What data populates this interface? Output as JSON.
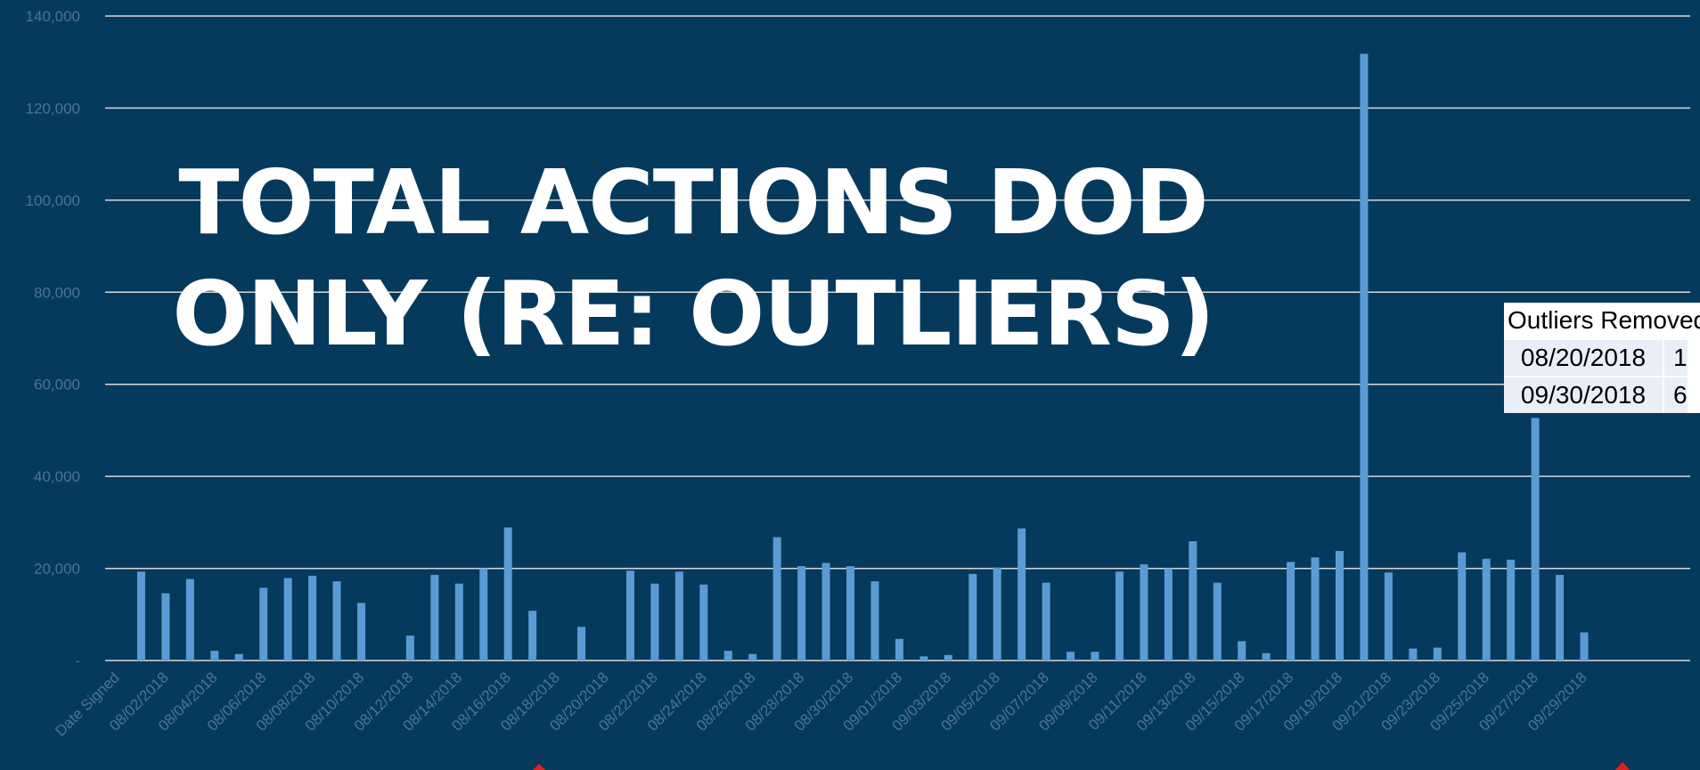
{
  "chart_data": {
    "type": "bar",
    "title": "TOTAL ACTIONS DOD ONLY  (RE: OUTLIERS)",
    "color": "#5b9bd5",
    "grid": true,
    "categories": [
      "Date Signed",
      null,
      "08/02/2018",
      null,
      "08/04/2018",
      null,
      "08/06/2018",
      null,
      "08/08/2018",
      null,
      "08/10/2018",
      null,
      "08/12/2018",
      null,
      "08/14/2018",
      null,
      "08/16/2018",
      null,
      "08/18/2018",
      null,
      "08/20/2018",
      null,
      "08/22/2018",
      null,
      "08/24/2018",
      null,
      "08/26/2018",
      null,
      "08/28/2018",
      null,
      "08/30/2018",
      null,
      "09/01/2018",
      null,
      "09/03/2018",
      null,
      "09/05/2018",
      null,
      "09/07/2018",
      null,
      "09/09/2018",
      null,
      "09/11/2018",
      null,
      "09/13/2018",
      null,
      "09/15/2018",
      null,
      "09/17/2018",
      null,
      "09/19/2018",
      null,
      "09/21/2018",
      null,
      "09/23/2018",
      null,
      "09/25/2018",
      null,
      "09/27/2018",
      null,
      "09/29/2018",
      null
    ],
    "values": [
      null,
      19300,
      14600,
      17700,
      2100,
      1400,
      15800,
      17900,
      18400,
      17200,
      12500,
      0,
      5400,
      18600,
      16700,
      20000,
      28900,
      10800,
      0,
      7300,
      0,
      19500,
      16700,
      19300,
      16500,
      2100,
      1400,
      26800,
      20500,
      21200,
      20500,
      17200,
      4700,
      900,
      1200,
      18800,
      20200,
      28700,
      16900,
      1900,
      1900,
      19300,
      20900,
      20000,
      25900,
      16900,
      4200,
      1600,
      21400,
      22400,
      23800,
      131800,
      19100,
      2600,
      2800,
      23500,
      22100,
      21900,
      52700,
      18600,
      6100,
      0
    ],
    "ylim": [
      0,
      140000
    ],
    "yticks": [
      {
        "value": 0,
        "label": "-"
      },
      {
        "value": 20000,
        "label": "20,000"
      },
      {
        "value": 40000,
        "label": "40,000"
      },
      {
        "value": 60000,
        "label": "60,000"
      },
      {
        "value": 80000,
        "label": "80,000"
      },
      {
        "value": 100000,
        "label": "100,000"
      },
      {
        "value": 120000,
        "label": "120,000"
      },
      {
        "value": 140000,
        "label": "140,000"
      }
    ]
  },
  "outliers_table": {
    "header": "Outliers Removed",
    "rows": [
      [
        "08/20/2018",
        "1"
      ],
      [
        "09/30/2018",
        "6"
      ]
    ]
  }
}
